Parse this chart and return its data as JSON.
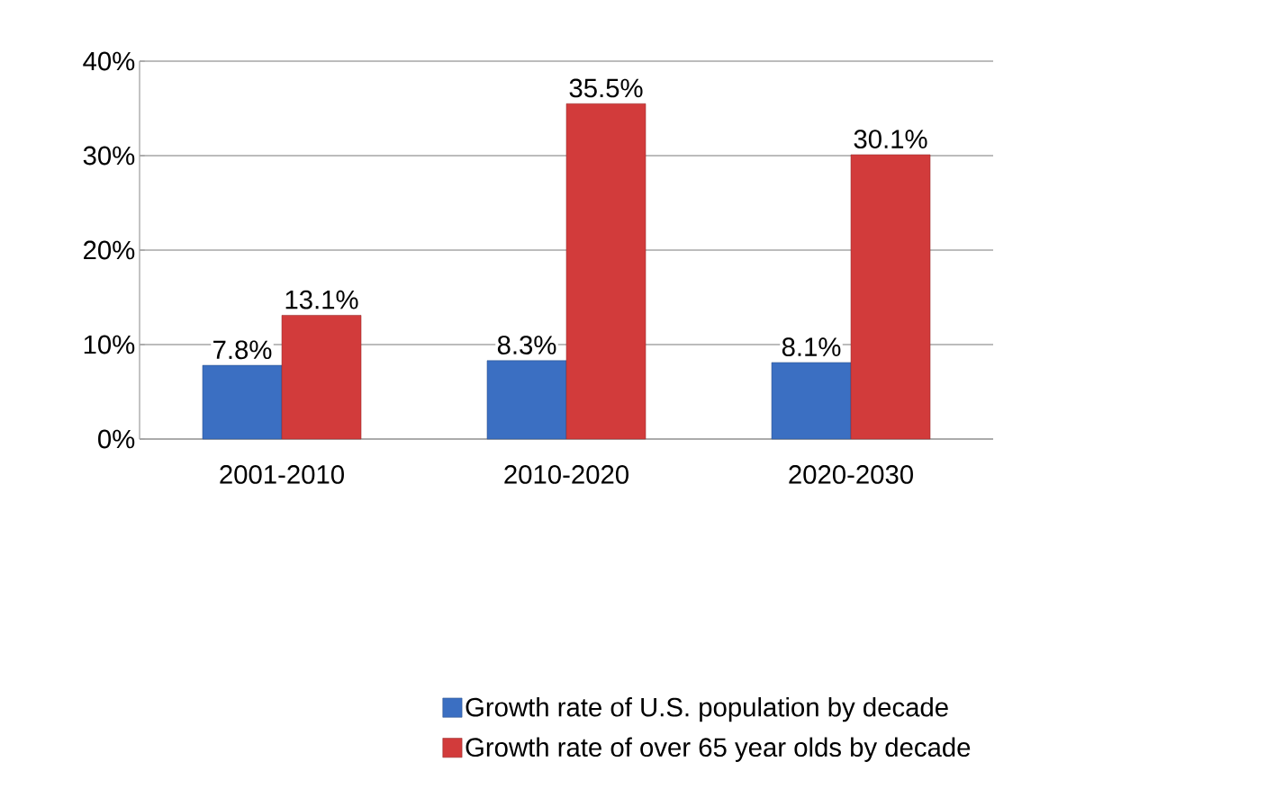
{
  "chart_data": {
    "type": "bar",
    "categories": [
      "2001-2010",
      "2010-2020",
      "2020-2030"
    ],
    "series": [
      {
        "name": "Growth rate of U.S. population by decade",
        "color": "#3b6fc2",
        "values": [
          7.8,
          8.3,
          8.1
        ],
        "value_labels": [
          "7.8%",
          "8.3%",
          "8.1%"
        ]
      },
      {
        "name": "Growth rate of over 65 year olds by decade",
        "color": "#d23b3b",
        "values": [
          13.1,
          35.5,
          30.1
        ],
        "value_labels": [
          "13.1%",
          "35.5%",
          "30.1%"
        ]
      }
    ],
    "ylim": [
      0,
      40
    ],
    "yticks": [
      {
        "value": 0,
        "label": "0%"
      },
      {
        "value": 10,
        "label": "10%"
      },
      {
        "value": 20,
        "label": "20%"
      },
      {
        "value": 30,
        "label": "30%"
      },
      {
        "value": 40,
        "label": "40%"
      }
    ],
    "grid": "y",
    "legend": "bottom"
  }
}
